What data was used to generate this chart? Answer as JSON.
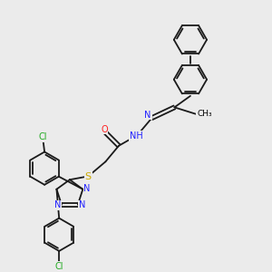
{
  "background_color": "#ebebeb",
  "bond_color": "#1a1a1a",
  "atom_colors": {
    "N": "#2020ff",
    "O": "#ff2020",
    "S": "#ccaa00",
    "Cl": "#22aa22",
    "C": "#1a1a1a",
    "H": "#555555"
  },
  "figsize": [
    3.0,
    3.0
  ],
  "dpi": 100,
  "lw": 1.3,
  "fs": 7.0
}
